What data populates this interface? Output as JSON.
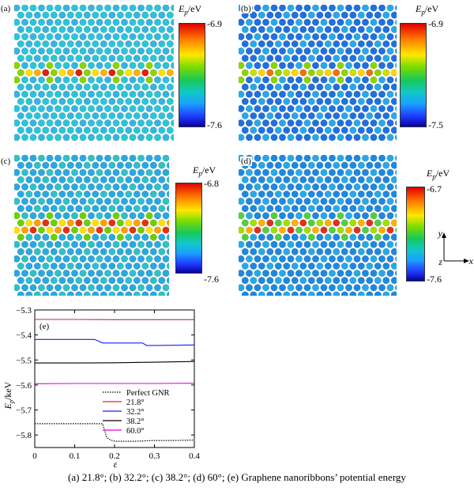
{
  "panels": [
    {
      "label": "(a)",
      "ep_title_sym": "E",
      "ep_title_sub": "p",
      "ep_title_unit": "/eV",
      "max": "-6.9",
      "min": "-7.6",
      "dots": {
        "base": "#2cc4d8",
        "alt": "#35b5e0",
        "defect": [
          "#e02010",
          "#ffb000",
          "#ffe000",
          "#8ad400"
        ]
      }
    },
    {
      "label": "(b)",
      "ep_title_sym": "E",
      "ep_title_sub": "p",
      "ep_title_unit": "/eV",
      "max": "-6.9",
      "min": "-7.5",
      "dots": {
        "base": "#2070e0",
        "alt": "#28a8e8",
        "defect": [
          "#f07010",
          "#ffd400",
          "#c8e000",
          "#8ad400"
        ]
      }
    },
    {
      "label": "(c)",
      "ep_title_sym": "E",
      "ep_title_sub": "p",
      "ep_title_unit": "/eV",
      "max": "-6.8",
      "min": "-7.6",
      "dots": {
        "base": "#2aa8e0",
        "alt": "#30c0c8",
        "defect": [
          "#e83010",
          "#ffa000",
          "#ffe000",
          "#6cd000"
        ]
      }
    },
    {
      "label": "(d)",
      "ep_title_sym": "E",
      "ep_title_sub": "p",
      "ep_title_unit": "/eV",
      "max": "-6.7",
      "min": "-7.6",
      "dots": {
        "base": "#1e88e0",
        "alt": "#28a8e8",
        "defect": [
          "#e03020",
          "#ffb000",
          "#a0e000",
          "#50d040"
        ]
      }
    }
  ],
  "axes_indicator": {
    "y": "y",
    "z": "z",
    "x": "x"
  },
  "chart_data": {
    "type": "line",
    "panel_label": "(e)",
    "xlabel": "ε",
    "ylabel_sym": "E",
    "ylabel_sub": "p",
    "ylabel_unit": "/keV",
    "xlim": [
      0,
      0.4
    ],
    "ylim": [
      -5.85,
      -5.3
    ],
    "xticks": [
      "0",
      "0.1",
      "0.2",
      "0.3",
      "0.4"
    ],
    "yticks": [
      "-5.3",
      "-5.4",
      "-5.5",
      "-5.6",
      "-5.7",
      "-5.8"
    ],
    "series": [
      {
        "name": "Perfect GNR",
        "color": "#000000",
        "dash": "dotted",
        "x": [
          0,
          0.05,
          0.1,
          0.15,
          0.17,
          0.175,
          0.18,
          0.19,
          0.2,
          0.25,
          0.3,
          0.35,
          0.4
        ],
        "y": [
          -5.755,
          -5.755,
          -5.755,
          -5.755,
          -5.755,
          -5.78,
          -5.81,
          -5.82,
          -5.825,
          -5.825,
          -5.822,
          -5.822,
          -5.82
        ]
      },
      {
        "name": "21.8°",
        "color": "#c03030",
        "dash": "solid",
        "x": [
          0,
          0.1,
          0.2,
          0.3,
          0.4
        ],
        "y": [
          -5.338,
          -5.338,
          -5.339,
          -5.339,
          -5.339
        ]
      },
      {
        "name": "32.2°",
        "color": "#1a1aff",
        "dash": "solid",
        "x": [
          0,
          0.15,
          0.16,
          0.17,
          0.27,
          0.28,
          0.3,
          0.4
        ],
        "y": [
          -5.418,
          -5.418,
          -5.425,
          -5.432,
          -5.432,
          -5.442,
          -5.442,
          -5.44
        ]
      },
      {
        "name": "38.2°",
        "color": "#000000",
        "dash": "solid",
        "x": [
          0,
          0.1,
          0.2,
          0.3,
          0.4
        ],
        "y": [
          -5.512,
          -5.512,
          -5.511,
          -5.509,
          -5.506
        ]
      },
      {
        "name": "60.0°",
        "color": "#e000e0",
        "dash": "solid",
        "x": [
          0,
          0.1,
          0.2,
          0.3,
          0.4
        ],
        "y": [
          -5.595,
          -5.594,
          -5.594,
          -5.594,
          -5.593
        ]
      }
    ]
  },
  "caption": "(a) 21.8°; (b) 32.2°; (c) 38.2°; (d) 60°; (e)   Graphene nanoribbons’ potential energy"
}
